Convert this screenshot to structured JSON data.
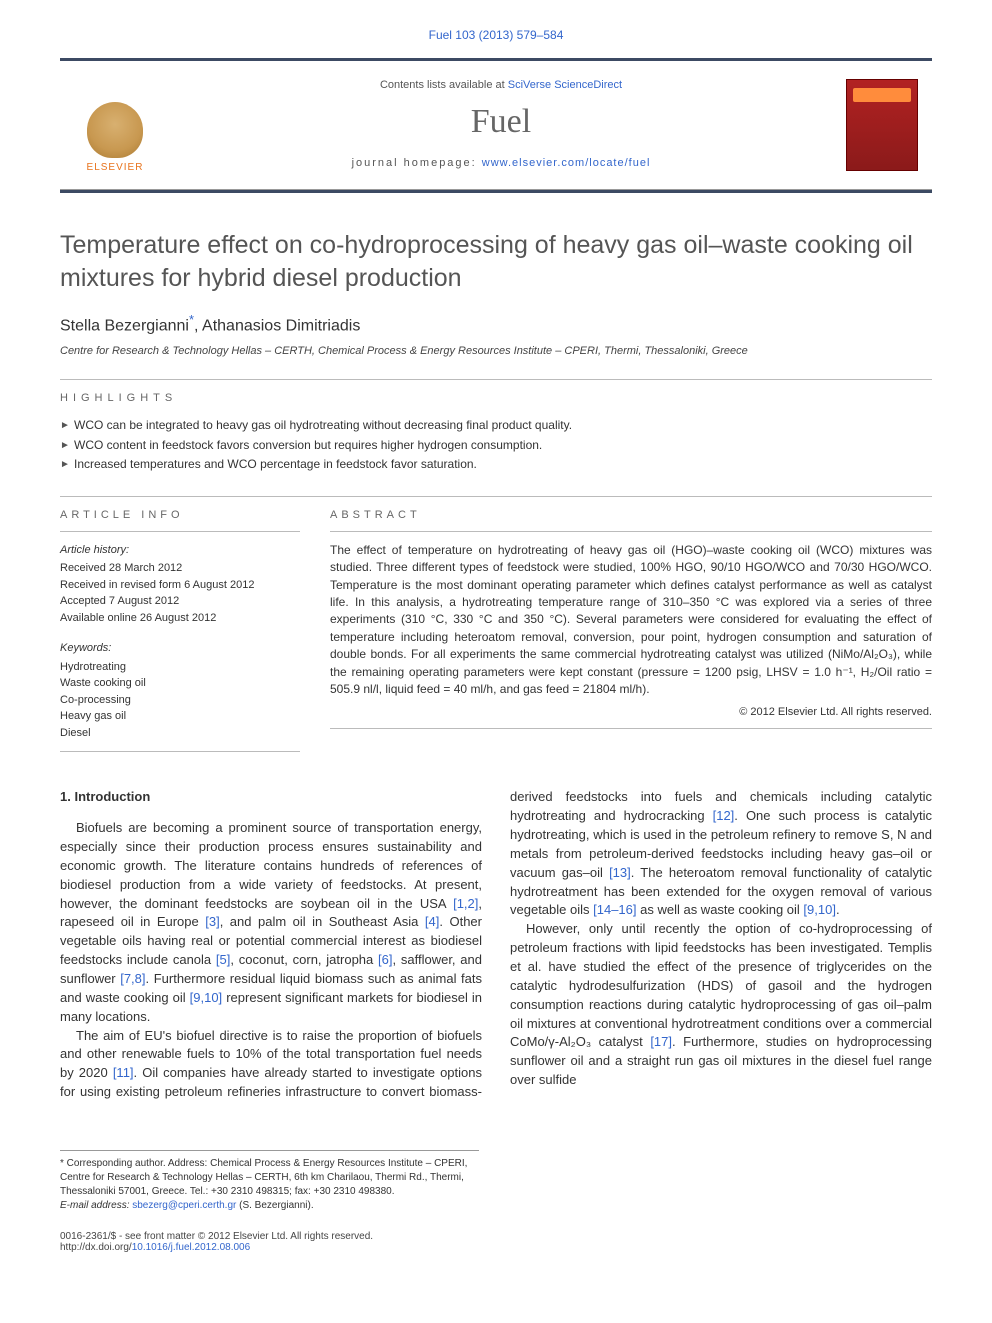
{
  "runHead": "Fuel 103 (2013) 579–584",
  "masthead": {
    "contentsPrefix": "Contents lists available at ",
    "contentsLink": "SciVerse ScienceDirect",
    "journalName": "Fuel",
    "homepagePrefix": "journal homepage: ",
    "homepageLink": "www.elsevier.com/locate/fuel",
    "publisherName": "ELSEVIER"
  },
  "article": {
    "title": "Temperature effect on co-hydroprocessing of heavy gas oil–waste cooking oil mixtures for hybrid diesel production",
    "authors": "Stella Bezergianni",
    "authors2": ", Athanasios Dimitriadis",
    "corrMark": "*",
    "affiliation": "Centre for Research & Technology Hellas – CERTH, Chemical Process & Energy Resources Institute – CPERI, Thermi, Thessaloniki, Greece"
  },
  "highlights": {
    "heading": "highlights",
    "items": [
      "WCO can be integrated to heavy gas oil hydrotreating without decreasing final product quality.",
      "WCO content in feedstock favors conversion but requires higher hydrogen consumption.",
      "Increased temperatures and WCO percentage in feedstock favor saturation."
    ]
  },
  "articleInfo": {
    "heading": "article info",
    "historyHead": "Article history:",
    "history": [
      "Received 28 March 2012",
      "Received in revised form 6 August 2012",
      "Accepted 7 August 2012",
      "Available online 26 August 2012"
    ],
    "keywordsHead": "Keywords:",
    "keywords": [
      "Hydrotreating",
      "Waste cooking oil",
      "Co-processing",
      "Heavy gas oil",
      "Diesel"
    ]
  },
  "abstract": {
    "heading": "abstract",
    "text": "The effect of temperature on hydrotreating of heavy gas oil (HGO)–waste cooking oil (WCO) mixtures was studied. Three different types of feedstock were studied, 100% HGO, 90/10 HGO/WCO and 70/30 HGO/WCO. Temperature is the most dominant operating parameter which defines catalyst performance as well as catalyst life. In this analysis, a hydrotreating temperature range of 310–350 °C was explored via a series of three experiments (310 °C, 330 °C and 350 °C). Several parameters were considered for evaluating the effect of temperature including heteroatom removal, conversion, pour point, hydrogen consumption and saturation of double bonds. For all experiments the same commercial hydrotreating catalyst was utilized (NiMo/Al₂O₃), while the remaining operating parameters were kept constant (pressure = 1200 psig, LHSV = 1.0 h⁻¹, H₂/Oil ratio = 505.9 nl/l, liquid feed = 40 ml/h, and gas feed = 21804 ml/h).",
    "copyright": "© 2012 Elsevier Ltd. All rights reserved."
  },
  "body": {
    "sec1Head": "1. Introduction",
    "p1a": "Biofuels are becoming a prominent source of transportation energy, especially since their production process ensures sustainability and economic growth. The literature contains hundreds of references of biodiesel production from a wide variety of feedstocks. At present, however, the dominant feedstocks are soybean oil in the USA ",
    "c1": "[1,2]",
    "p1b": ", rapeseed oil in Europe ",
    "c2": "[3]",
    "p1c": ", and palm oil in Southeast Asia ",
    "c3": "[4]",
    "p1d": ". Other vegetable oils having real or potential commercial interest as biodiesel feedstocks include canola ",
    "c4": "[5]",
    "p1e": ", coconut, corn, jatropha ",
    "c5": "[6]",
    "p1f": ", safflower, and sunflower ",
    "c6": "[7,8]",
    "p1g": ". Furthermore residual liquid biomass such as animal fats and waste cooking oil ",
    "c7": "[9,10]",
    "p1h": " represent significant markets for biodiesel in many locations.",
    "p2a": "The aim of EU's biofuel directive is to raise the proportion of biofuels and other renewable fuels to 10% of the total transportation fuel needs by 2020 ",
    "c8": "[11]",
    "p2b": ". Oil companies have already started to investigate options for using existing petroleum refineries infrastructure to convert biomass-derived feedstocks into fuels and chemicals including catalytic hydrotreating and hydrocracking ",
    "c9": "[12]",
    "p2c": ". One such process is catalytic hydrotreating, which is used in the petroleum refinery to remove S, N and metals from petroleum-derived feedstocks including heavy gas–oil or vacuum gas–oil ",
    "c10": "[13]",
    "p2d": ". The heteroatom removal functionality of catalytic hydrotreatment has been extended for the oxygen removal of various vegetable oils ",
    "c11": "[14–16]",
    "p2e": " as well as waste cooking oil ",
    "c12": "[9,10]",
    "p2f": ".",
    "p3a": "However, only until recently the option of co-hydroprocessing of petroleum fractions with lipid feedstocks has been investigated. Templis et al. have studied the effect of the presence of triglycerides on the catalytic hydrodesulfurization (HDS) of gasoil and the hydrogen consumption reactions during catalytic hydroprocessing of gas oil–palm oil mixtures at conventional hydrotreatment conditions over a commercial CoMo/γ-Al₂O₃ catalyst ",
    "c13": "[17]",
    "p3b": ". Furthermore, studies on hydroprocessing sunflower oil and a straight run gas oil mixtures in the diesel fuel range over sulfide"
  },
  "footnote": {
    "corr": "* Corresponding author. Address: Chemical Process & Energy Resources Institute – CPERI, Centre for Research & Technology Hellas – CERTH, 6th km Charilaou, Thermi Rd., Thermi, Thessaloniki 57001, Greece. Tel.: +30 2310 498315; fax: +30 2310 498380.",
    "emailLabel": "E-mail address: ",
    "email": "sbezerg@cperi.certh.gr",
    "emailSuffix": " (S. Bezergianni)."
  },
  "footer": {
    "issn": "0016-2361/$ - see front matter © 2012 Elsevier Ltd. All rights reserved.",
    "doiLabel": "http://dx.doi.org/",
    "doi": "10.1016/j.fuel.2012.08.006"
  },
  "colors": {
    "bar": "#3c4a63",
    "link": "#3366cc",
    "orange": "#e8731c"
  }
}
